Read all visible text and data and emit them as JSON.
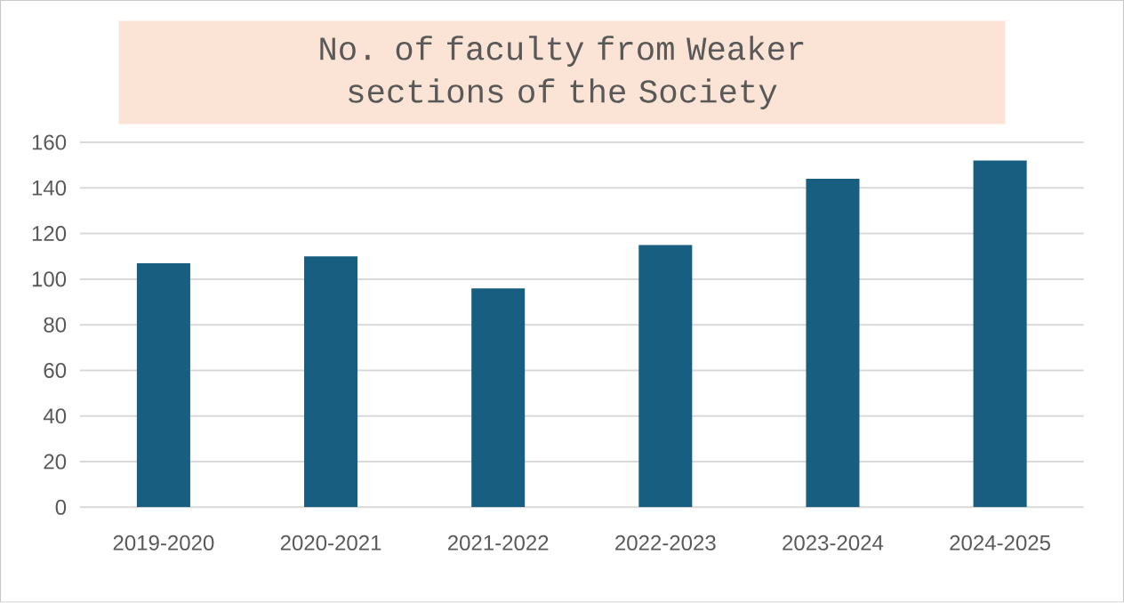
{
  "chart_data": {
    "type": "bar",
    "title": "No. of faculty from Weaker sections of the Society",
    "categories": [
      "2019-2020",
      "2020-2021",
      "2021-2022",
      "2022-2023",
      "2023-2024",
      "2024-2025"
    ],
    "values": [
      107,
      110,
      96,
      115,
      144,
      152
    ],
    "color": "#175e80",
    "ylim": [
      0,
      160
    ],
    "yticks": [
      0,
      20,
      40,
      60,
      80,
      100,
      120,
      140,
      160
    ],
    "grid": "y"
  }
}
